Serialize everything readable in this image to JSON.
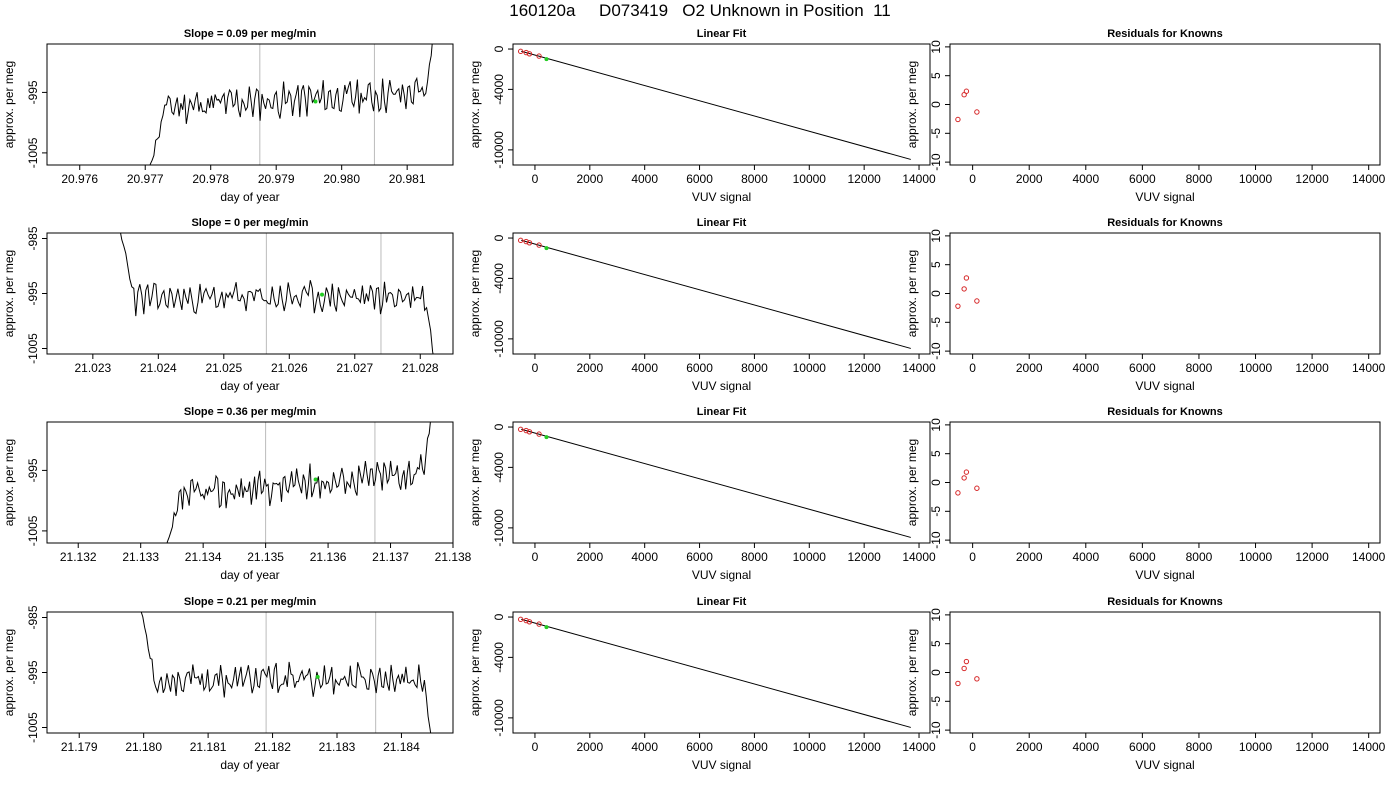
{
  "title": "160120a     D073419   O2 Unknown in Position  11",
  "colors": {
    "series": "#000000",
    "known": "#d62728",
    "unknown": "#22cc22",
    "vline": "#bbbbbb"
  },
  "chart_data": [
    {
      "type": "line",
      "title": "Slope =  0.09  per meg/min",
      "xlabel": "day of year",
      "ylabel": "approx. per meg",
      "xlim": [
        20.9755,
        20.9817
      ],
      "ylim": [
        -1007,
        -987
      ],
      "xticks": [
        20.976,
        20.977,
        20.978,
        20.979,
        20.98,
        20.981
      ],
      "xtick_labels": [
        "20.976",
        "20.977",
        "20.978",
        "20.979",
        "20.980",
        "20.981"
      ],
      "yticks": [
        -995,
        -1005
      ],
      "ytick_labels": [
        "-995",
        "-1005"
      ],
      "vlines": [
        20.97875,
        20.9805
      ],
      "trace": {
        "x_start": 20.97705,
        "x_end": 20.98145,
        "start": -1008,
        "level_a": -997.5,
        "level_b": -995.0,
        "end": -980,
        "seed": 11
      },
      "marker": {
        "x": 20.9796,
        "y": -996.5
      }
    },
    {
      "type": "scatter",
      "title": "Linear Fit",
      "xlabel": "VUV signal",
      "ylabel": "approx. per meg",
      "xlim": [
        -800,
        14400
      ],
      "ylim": [
        -11500,
        500
      ],
      "xticks": [
        0,
        2000,
        4000,
        6000,
        8000,
        10000,
        12000,
        14000
      ],
      "xtick_labels": [
        "0",
        "2000",
        "4000",
        "6000",
        "8000",
        "10000",
        "12000",
        "14000"
      ],
      "yticks": [
        0,
        -4000,
        -10000
      ],
      "ytick_labels": [
        "0",
        "-4000",
        "-10000"
      ],
      "fit_line": {
        "x": [
          -500,
          13700
        ],
        "y": [
          -220,
          -10950
        ]
      },
      "knowns": {
        "x": [
          -520,
          -320,
          -200,
          150
        ],
        "y": [
          -230,
          -350,
          -470,
          -700
        ]
      },
      "unknown": {
        "x": 420,
        "y": -996
      }
    },
    {
      "type": "scatter",
      "title": "Residuals for Knowns",
      "xlabel": "VUV signal",
      "ylabel": "approx. per meg",
      "xlim": [
        -800,
        14400
      ],
      "ylim": [
        -10.5,
        10.5
      ],
      "xticks": [
        0,
        2000,
        4000,
        6000,
        8000,
        10000,
        12000,
        14000
      ],
      "xtick_labels": [
        "0",
        "2000",
        "4000",
        "6000",
        "8000",
        "10000",
        "12000",
        "14000"
      ],
      "yticks": [
        10,
        5,
        0,
        -5,
        -10
      ],
      "ytick_labels": [
        "10",
        "5",
        "0",
        "-5",
        "-10"
      ],
      "points": {
        "x": [
          -520,
          -300,
          -220,
          150
        ],
        "y": [
          -2.6,
          1.7,
          2.3,
          -1.3
        ]
      }
    },
    {
      "type": "line",
      "title": "Slope =  0  per meg/min",
      "xlabel": "day of year",
      "ylabel": "approx. per meg",
      "xlim": [
        21.0223,
        21.0285
      ],
      "ylim": [
        -1006,
        -984
      ],
      "xticks": [
        21.023,
        21.024,
        21.025,
        21.026,
        21.027,
        21.028
      ],
      "xtick_labels": [
        "21.023",
        "21.024",
        "21.025",
        "21.026",
        "21.027",
        "21.028"
      ],
      "yticks": [
        -985,
        -995,
        -1005
      ],
      "ytick_labels": [
        "-985",
        "-995",
        "-1005"
      ],
      "vlines": [
        21.02565,
        21.0274
      ],
      "trace": {
        "x_start": 21.02335,
        "x_end": 21.02825,
        "start": -980,
        "level_a": -996.0,
        "level_b": -995.5,
        "end": -1010,
        "seed": 23
      },
      "marker": {
        "x": 21.0265,
        "y": -995.2
      }
    },
    {
      "type": "scatter",
      "title": "Linear Fit",
      "xlabel": "VUV signal",
      "ylabel": "approx. per meg",
      "xlim": [
        -800,
        14400
      ],
      "ylim": [
        -11500,
        500
      ],
      "xticks": [
        0,
        2000,
        4000,
        6000,
        8000,
        10000,
        12000,
        14000
      ],
      "xtick_labels": [
        "0",
        "2000",
        "4000",
        "6000",
        "8000",
        "10000",
        "12000",
        "14000"
      ],
      "yticks": [
        0,
        -4000,
        -10000
      ],
      "ytick_labels": [
        "0",
        "-4000",
        "-10000"
      ],
      "fit_line": {
        "x": [
          -500,
          13700
        ],
        "y": [
          -220,
          -10950
        ]
      },
      "knowns": {
        "x": [
          -520,
          -320,
          -200,
          150
        ],
        "y": [
          -230,
          -350,
          -470,
          -700
        ]
      },
      "unknown": {
        "x": 420,
        "y": -996
      }
    },
    {
      "type": "scatter",
      "title": "Residuals for Knowns",
      "xlabel": "VUV signal",
      "ylabel": "approx. per meg",
      "xlim": [
        -800,
        14400
      ],
      "ylim": [
        -10.5,
        10.5
      ],
      "xticks": [
        0,
        2000,
        4000,
        6000,
        8000,
        10000,
        12000,
        14000
      ],
      "xtick_labels": [
        "0",
        "2000",
        "4000",
        "6000",
        "8000",
        "10000",
        "12000",
        "14000"
      ],
      "yticks": [
        10,
        5,
        0,
        -5,
        -10
      ],
      "ytick_labels": [
        "10",
        "5",
        "0",
        "-5",
        "-10"
      ],
      "points": {
        "x": [
          -520,
          -300,
          -220,
          150
        ],
        "y": [
          -2.2,
          0.8,
          2.7,
          -1.3
        ]
      }
    },
    {
      "type": "line",
      "title": "Slope =  0.36  per meg/min",
      "xlabel": "day of year",
      "ylabel": "approx. per meg",
      "xlim": [
        21.1315,
        21.138
      ],
      "ylim": [
        -1007,
        -987
      ],
      "xticks": [
        21.132,
        21.133,
        21.134,
        21.135,
        21.136,
        21.137,
        21.138
      ],
      "xtick_labels": [
        "21.132",
        "21.133",
        "21.134",
        "21.135",
        "21.136",
        "21.137",
        "21.138"
      ],
      "yticks": [
        -995,
        -1005
      ],
      "ytick_labels": [
        "-995",
        "-1005"
      ],
      "vlines": [
        21.135,
        21.13675
      ],
      "trace": {
        "x_start": 21.1334,
        "x_end": 21.1377,
        "start": -1008,
        "level_a": -999.5,
        "level_b": -995.0,
        "end": -980,
        "seed": 37
      },
      "marker": {
        "x": 21.1358,
        "y": -996.5
      }
    },
    {
      "type": "scatter",
      "title": "Linear Fit",
      "xlabel": "VUV signal",
      "ylabel": "approx. per meg",
      "xlim": [
        -800,
        14400
      ],
      "ylim": [
        -11500,
        500
      ],
      "xticks": [
        0,
        2000,
        4000,
        6000,
        8000,
        10000,
        12000,
        14000
      ],
      "xtick_labels": [
        "0",
        "2000",
        "4000",
        "6000",
        "8000",
        "10000",
        "12000",
        "14000"
      ],
      "yticks": [
        0,
        -4000,
        -10000
      ],
      "ytick_labels": [
        "0",
        "-4000",
        "-10000"
      ],
      "fit_line": {
        "x": [
          -500,
          13700
        ],
        "y": [
          -220,
          -10950
        ]
      },
      "knowns": {
        "x": [
          -520,
          -320,
          -200,
          150
        ],
        "y": [
          -230,
          -350,
          -470,
          -700
        ]
      },
      "unknown": {
        "x": 420,
        "y": -996
      }
    },
    {
      "type": "scatter",
      "title": "Residuals for Knowns",
      "xlabel": "VUV signal",
      "ylabel": "approx. per meg",
      "xlim": [
        -800,
        14400
      ],
      "ylim": [
        -10.5,
        10.5
      ],
      "xticks": [
        0,
        2000,
        4000,
        6000,
        8000,
        10000,
        12000,
        14000
      ],
      "xtick_labels": [
        "0",
        "2000",
        "4000",
        "6000",
        "8000",
        "10000",
        "12000",
        "14000"
      ],
      "yticks": [
        10,
        5,
        0,
        -5,
        -10
      ],
      "ytick_labels": [
        "10",
        "5",
        "0",
        "-5",
        "-10"
      ],
      "points": {
        "x": [
          -520,
          -300,
          -220,
          150
        ],
        "y": [
          -1.8,
          0.8,
          1.8,
          -1.0
        ]
      }
    },
    {
      "type": "line",
      "title": "Slope =  0.21  per meg/min",
      "xlabel": "day of year",
      "ylabel": "approx. per meg",
      "xlim": [
        21.1785,
        21.1848
      ],
      "ylim": [
        -1006,
        -984
      ],
      "xticks": [
        21.179,
        21.18,
        21.181,
        21.182,
        21.183,
        21.184
      ],
      "xtick_labels": [
        "21.179",
        "21.180",
        "21.181",
        "21.182",
        "21.183",
        "21.184"
      ],
      "yticks": [
        -985,
        -995,
        -1005
      ],
      "ytick_labels": [
        "-985",
        "-995",
        "-1005"
      ],
      "vlines": [
        21.1819,
        21.1836
      ],
      "trace": {
        "x_start": 21.1799,
        "x_end": 21.1845,
        "start": -980,
        "level_a": -996.5,
        "level_b": -996.0,
        "end": -1010,
        "seed": 53
      },
      "marker": {
        "x": 21.1827,
        "y": -995.8
      }
    },
    {
      "type": "scatter",
      "title": "Linear Fit",
      "xlabel": "VUV signal",
      "ylabel": "approx. per meg",
      "xlim": [
        -800,
        14400
      ],
      "ylim": [
        -11500,
        500
      ],
      "xticks": [
        0,
        2000,
        4000,
        6000,
        8000,
        10000,
        12000,
        14000
      ],
      "xtick_labels": [
        "0",
        "2000",
        "4000",
        "6000",
        "8000",
        "10000",
        "12000",
        "14000"
      ],
      "yticks": [
        0,
        -4000,
        -10000
      ],
      "ytick_labels": [
        "0",
        "-4000",
        "-10000"
      ],
      "fit_line": {
        "x": [
          -500,
          13700
        ],
        "y": [
          -220,
          -10950
        ]
      },
      "knowns": {
        "x": [
          -520,
          -320,
          -200,
          150
        ],
        "y": [
          -230,
          -350,
          -470,
          -700
        ]
      },
      "unknown": {
        "x": 420,
        "y": -996
      }
    },
    {
      "type": "scatter",
      "title": "Residuals for Knowns",
      "xlabel": "VUV signal",
      "ylabel": "approx. per meg",
      "xlim": [
        -800,
        14400
      ],
      "ylim": [
        -10.5,
        10.5
      ],
      "xticks": [
        0,
        2000,
        4000,
        6000,
        8000,
        10000,
        12000,
        14000
      ],
      "xtick_labels": [
        "0",
        "2000",
        "4000",
        "6000",
        "8000",
        "10000",
        "12000",
        "14000"
      ],
      "yticks": [
        10,
        5,
        0,
        -5,
        -10
      ],
      "ytick_labels": [
        "10",
        "5",
        "0",
        "-5",
        "-10"
      ],
      "points": {
        "x": [
          -520,
          -300,
          -220,
          150
        ],
        "y": [
          -1.9,
          0.7,
          1.9,
          -1.1
        ]
      }
    }
  ]
}
